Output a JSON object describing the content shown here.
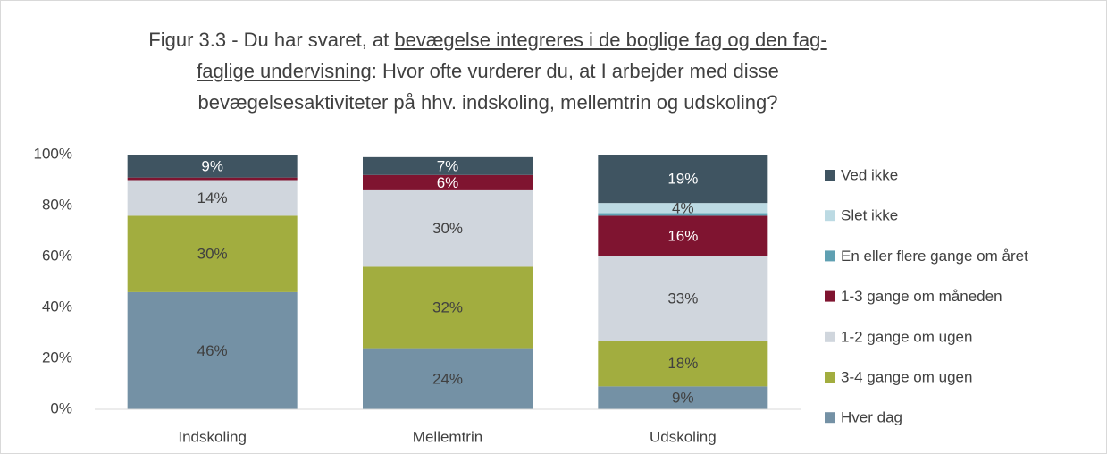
{
  "chart_data": {
    "type": "stacked-bar",
    "title": [
      "Figur 3.3 - Du har svaret, at ",
      "bevægelse integreres i de boglige fag og den fag-faglige undervisning",
      ": Hvor ofte vurderer du, at I arbejder med disse bevægelsesaktiviteter på hhv. indskoling, mellemtrin og udskoling?"
    ],
    "categories": [
      "Indskoling",
      "Mellemtrin",
      "Udskoling"
    ],
    "series": [
      {
        "name": "Hver dag",
        "color": "#7491a5",
        "values": [
          46,
          24,
          9
        ],
        "value_labels": [
          "46%",
          "24%",
          "9%"
        ]
      },
      {
        "name": "3-4 gange om ugen",
        "color": "#a2ad3f",
        "values": [
          30,
          32,
          18
        ],
        "value_labels": [
          "30%",
          "32%",
          "18%"
        ]
      },
      {
        "name": "1-2 gange om ugen",
        "color": "#d0d6dd",
        "values": [
          14,
          30,
          33
        ],
        "value_labels": [
          "14%",
          "30%",
          "33%"
        ]
      },
      {
        "name": "1-3 gange om måneden",
        "color": "#7f1430",
        "values": [
          1,
          6,
          16
        ],
        "value_labels": [
          null,
          "6%",
          "16%"
        ]
      },
      {
        "name": "En eller flere gange om året",
        "color": "#5fa0b2",
        "values": [
          0,
          0,
          1
        ],
        "value_labels": [
          null,
          null,
          null
        ]
      },
      {
        "name": "Slet ikke",
        "color": "#bcdae3",
        "values": [
          0,
          0,
          4
        ],
        "value_labels": [
          null,
          null,
          "4%"
        ]
      },
      {
        "name": "Ved ikke",
        "color": "#3f5461",
        "values": [
          9,
          7,
          19
        ],
        "value_labels": [
          "9%",
          "7%",
          "19%"
        ]
      }
    ],
    "ylim": [
      0,
      100
    ],
    "yticks": [
      {
        "value": 0,
        "label": "0%"
      },
      {
        "value": 20,
        "label": "20%"
      },
      {
        "value": 40,
        "label": "40%"
      },
      {
        "value": 60,
        "label": "60%"
      },
      {
        "value": 80,
        "label": "80%"
      },
      {
        "value": 100,
        "label": "100%"
      }
    ],
    "grid": false,
    "legend": "right"
  }
}
